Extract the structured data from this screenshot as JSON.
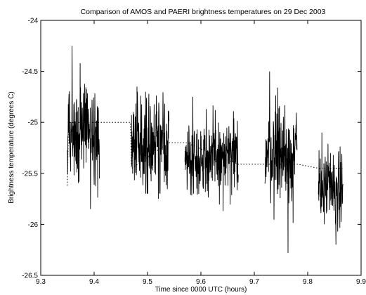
{
  "chart_data": {
    "type": "line",
    "title": "Comparison of AMOS and PAERI brightness temperatures on 29 Dec 2003",
    "xlabel": "Time since 0000 UTC (hours)",
    "ylabel": "Brightness temperature (degrees C)",
    "xlim": [
      9.3,
      9.9
    ],
    "ylim": [
      -26.5,
      -24
    ],
    "grid": false,
    "xticks": [
      9.3,
      9.4,
      9.5,
      9.6,
      9.7,
      9.8,
      9.9
    ],
    "xtick_labels": [
      "9.3",
      "9.4",
      "9.5",
      "9.6",
      "9.7",
      "9.8",
      "9.9"
    ],
    "yticks": [
      -26.5,
      -26,
      -25.5,
      -25,
      -24.5,
      -24
    ],
    "ytick_labels": [
      "-26.5",
      "-26",
      "-25.5",
      "-25",
      "-24.5",
      "-24"
    ],
    "series": [
      {
        "style": "solid-noisy",
        "segments": [
          {
            "x_start": 9.35,
            "x_end": 9.41,
            "mean": -25.1,
            "spread_low": -25.85,
            "spread_high": -24.25,
            "typical_low": -25.3,
            "typical_high": -24.8
          },
          {
            "x_start": 9.47,
            "x_end": 9.54,
            "mean": -25.2,
            "spread_low": -25.75,
            "spread_high": -24.65,
            "typical_low": -25.45,
            "typical_high": -24.95
          },
          {
            "x_start": 9.57,
            "x_end": 9.67,
            "mean": -25.35,
            "spread_low": -25.87,
            "spread_high": -24.75,
            "typical_low": -25.55,
            "typical_high": -25.15
          },
          {
            "x_start": 9.72,
            "x_end": 9.78,
            "mean": -25.3,
            "spread_low": -26.28,
            "spread_high": -24.5,
            "typical_low": -25.55,
            "typical_high": -25.05
          },
          {
            "x_start": 9.82,
            "x_end": 9.866,
            "mean": -25.65,
            "spread_low": -26.2,
            "spread_high": -25.1,
            "typical_low": -25.85,
            "typical_high": -25.45
          }
        ]
      },
      {
        "style": "dotted",
        "points": [
          {
            "x": 9.35,
            "y": -25.62
          },
          {
            "x": 9.352,
            "y": -25.0
          },
          {
            "x": 9.413,
            "y": -25.0
          },
          {
            "x": 9.468,
            "y": -25.0
          },
          {
            "x": 9.47,
            "y": -25.45
          },
          {
            "x": 9.54,
            "y": -25.2
          },
          {
            "x": 9.572,
            "y": -25.2
          },
          {
            "x": 9.67,
            "y": -25.41
          },
          {
            "x": 9.715,
            "y": -25.41
          },
          {
            "x": 9.725,
            "y": -25.41
          },
          {
            "x": 9.78,
            "y": -25.41
          },
          {
            "x": 9.82,
            "y": -25.45
          },
          {
            "x": 9.866,
            "y": -25.45
          }
        ]
      }
    ]
  }
}
